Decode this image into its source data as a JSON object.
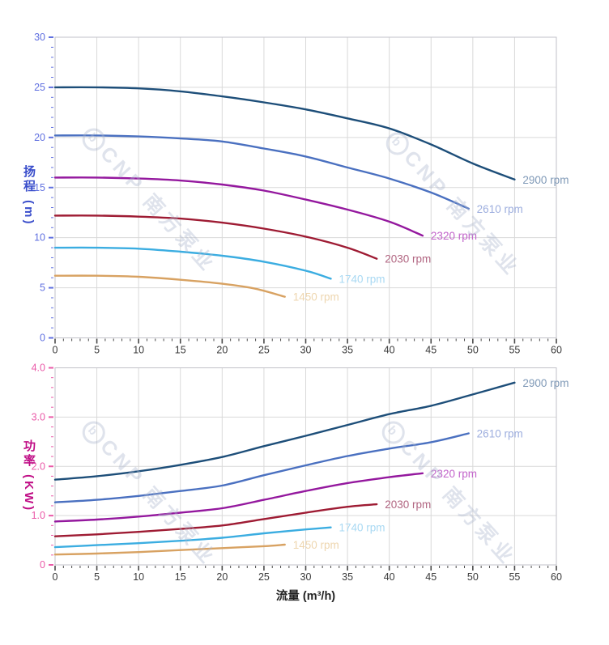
{
  "page": {
    "background": "#ffffff"
  },
  "watermark": {
    "logo_letter": "b",
    "text": "CNP 南方泵业"
  },
  "axis_titles": {
    "head_y": "扬程 (m)",
    "power_y": "功率 (KW)",
    "flow_x": "流量 (m³/h)"
  },
  "chart_data": [
    {
      "type": "line",
      "name": "head-vs-flow",
      "ylabel": "扬程 (m)",
      "xlabel": "流量 (m³/h)",
      "x_range": [
        0,
        60
      ],
      "x_major": 5,
      "x_minor": 1,
      "y_range": [
        0,
        30
      ],
      "y_major": 5,
      "y_minor": 1,
      "x_tick_labels": [
        "0",
        "5",
        "10",
        "15",
        "20",
        "25",
        "30",
        "35",
        "40",
        "45",
        "50",
        "55",
        "60"
      ],
      "y_tick_labels": [
        "30",
        "25",
        "20",
        "15",
        "10",
        "5",
        "0"
      ],
      "grid": true,
      "legend_position": "curve-end-labels",
      "axis_tick_color": "#6070e0",
      "x_tick_label_color": "#3a3a3a",
      "grid_color": "#d9d9d9",
      "border_color": "#c2c2c8",
      "series": [
        {
          "name": "2900 rpm",
          "color": "#1d4e79",
          "label_color": "#7f99b7",
          "points": [
            [
              0,
              25.0
            ],
            [
              5,
              25.0
            ],
            [
              10,
              24.9
            ],
            [
              15,
              24.6
            ],
            [
              20,
              24.1
            ],
            [
              25,
              23.5
            ],
            [
              30,
              22.8
            ],
            [
              35,
              21.9
            ],
            [
              40,
              20.9
            ],
            [
              45,
              19.3
            ],
            [
              50,
              17.4
            ],
            [
              55,
              15.8
            ]
          ]
        },
        {
          "name": "2610 rpm",
          "color": "#4a70c0",
          "label_color": "#9daede",
          "points": [
            [
              0,
              20.2
            ],
            [
              5,
              20.2
            ],
            [
              10,
              20.1
            ],
            [
              15,
              19.9
            ],
            [
              20,
              19.6
            ],
            [
              25,
              18.9
            ],
            [
              30,
              18.1
            ],
            [
              35,
              17.0
            ],
            [
              40,
              15.9
            ],
            [
              45,
              14.5
            ],
            [
              49.5,
              12.9
            ]
          ]
        },
        {
          "name": "2320 rpm",
          "color": "#94189e",
          "label_color": "#c263ca",
          "points": [
            [
              0,
              16.0
            ],
            [
              5,
              16.0
            ],
            [
              10,
              15.9
            ],
            [
              15,
              15.7
            ],
            [
              20,
              15.3
            ],
            [
              25,
              14.7
            ],
            [
              30,
              13.8
            ],
            [
              35,
              12.8
            ],
            [
              40,
              11.6
            ],
            [
              44,
              10.2
            ]
          ]
        },
        {
          "name": "2030 rpm",
          "color": "#9e1b33",
          "label_color": "#b16581",
          "points": [
            [
              0,
              12.2
            ],
            [
              5,
              12.2
            ],
            [
              10,
              12.1
            ],
            [
              15,
              11.9
            ],
            [
              20,
              11.5
            ],
            [
              25,
              10.9
            ],
            [
              30,
              10.1
            ],
            [
              35,
              9.0
            ],
            [
              38.5,
              7.9
            ]
          ]
        },
        {
          "name": "1740 rpm",
          "color": "#3bade1",
          "label_color": "#a9d9f3",
          "points": [
            [
              0,
              9.0
            ],
            [
              5,
              9.0
            ],
            [
              10,
              8.9
            ],
            [
              15,
              8.6
            ],
            [
              20,
              8.2
            ],
            [
              25,
              7.6
            ],
            [
              30,
              6.7
            ],
            [
              33,
              5.9
            ]
          ]
        },
        {
          "name": "1450 rpm",
          "color": "#d8a262",
          "label_color": "#eed6af",
          "points": [
            [
              0,
              6.2
            ],
            [
              5,
              6.2
            ],
            [
              10,
              6.1
            ],
            [
              15,
              5.8
            ],
            [
              20,
              5.4
            ],
            [
              24,
              4.9
            ],
            [
              27.5,
              4.1
            ]
          ]
        }
      ]
    },
    {
      "type": "line",
      "name": "power-vs-flow",
      "ylabel": "功率 (KW)",
      "xlabel": "流量 (m³/h)",
      "x_range": [
        0,
        60
      ],
      "x_major": 5,
      "x_minor": 1,
      "y_range": [
        0,
        4
      ],
      "y_major": 1,
      "y_minor": 0.2,
      "x_tick_labels": [
        "0",
        "5",
        "10",
        "15",
        "20",
        "25",
        "30",
        "35",
        "40",
        "45",
        "50",
        "55",
        "60"
      ],
      "y_tick_labels": [
        "4.0",
        "3.0",
        "2.0",
        "1.0",
        "0"
      ],
      "grid": true,
      "legend_position": "curve-end-labels",
      "axis_tick_color": "#ea5aa8",
      "x_tick_label_color": "#3a3a3a",
      "grid_color": "#d9d9d9",
      "border_color": "#c2c2c8",
      "series": [
        {
          "name": "2900 rpm",
          "color": "#1d4e79",
          "label_color": "#7f99b7",
          "points": [
            [
              0,
              1.73
            ],
            [
              5,
              1.8
            ],
            [
              10,
              1.9
            ],
            [
              15,
              2.03
            ],
            [
              20,
              2.19
            ],
            [
              25,
              2.41
            ],
            [
              30,
              2.62
            ],
            [
              35,
              2.84
            ],
            [
              40,
              3.06
            ],
            [
              45,
              3.23
            ],
            [
              50,
              3.46
            ],
            [
              55,
              3.7
            ]
          ]
        },
        {
          "name": "2610 rpm",
          "color": "#4a70c0",
          "label_color": "#9daede",
          "points": [
            [
              0,
              1.27
            ],
            [
              5,
              1.32
            ],
            [
              10,
              1.4
            ],
            [
              15,
              1.5
            ],
            [
              20,
              1.61
            ],
            [
              25,
              1.82
            ],
            [
              30,
              2.02
            ],
            [
              35,
              2.21
            ],
            [
              40,
              2.36
            ],
            [
              45,
              2.49
            ],
            [
              49.5,
              2.67
            ]
          ]
        },
        {
          "name": "2320 rpm",
          "color": "#94189e",
          "label_color": "#c263ca",
          "points": [
            [
              0,
              0.88
            ],
            [
              5,
              0.92
            ],
            [
              10,
              0.98
            ],
            [
              15,
              1.06
            ],
            [
              20,
              1.15
            ],
            [
              25,
              1.32
            ],
            [
              30,
              1.5
            ],
            [
              35,
              1.66
            ],
            [
              40,
              1.78
            ],
            [
              44,
              1.86
            ]
          ]
        },
        {
          "name": "2030 rpm",
          "color": "#9e1b33",
          "label_color": "#b16581",
          "points": [
            [
              0,
              0.58
            ],
            [
              5,
              0.62
            ],
            [
              10,
              0.67
            ],
            [
              15,
              0.73
            ],
            [
              20,
              0.8
            ],
            [
              25,
              0.93
            ],
            [
              30,
              1.06
            ],
            [
              35,
              1.18
            ],
            [
              38.5,
              1.23
            ]
          ]
        },
        {
          "name": "1740 rpm",
          "color": "#3bade1",
          "label_color": "#a9d9f3",
          "points": [
            [
              0,
              0.36
            ],
            [
              5,
              0.4
            ],
            [
              10,
              0.44
            ],
            [
              15,
              0.49
            ],
            [
              20,
              0.55
            ],
            [
              25,
              0.64
            ],
            [
              30,
              0.72
            ],
            [
              33,
              0.76
            ]
          ]
        },
        {
          "name": "1450 rpm",
          "color": "#d8a262",
          "label_color": "#eed6af",
          "points": [
            [
              0,
              0.21
            ],
            [
              5,
              0.23
            ],
            [
              10,
              0.26
            ],
            [
              15,
              0.3
            ],
            [
              20,
              0.34
            ],
            [
              25,
              0.38
            ],
            [
              27.5,
              0.41
            ]
          ]
        }
      ]
    }
  ]
}
